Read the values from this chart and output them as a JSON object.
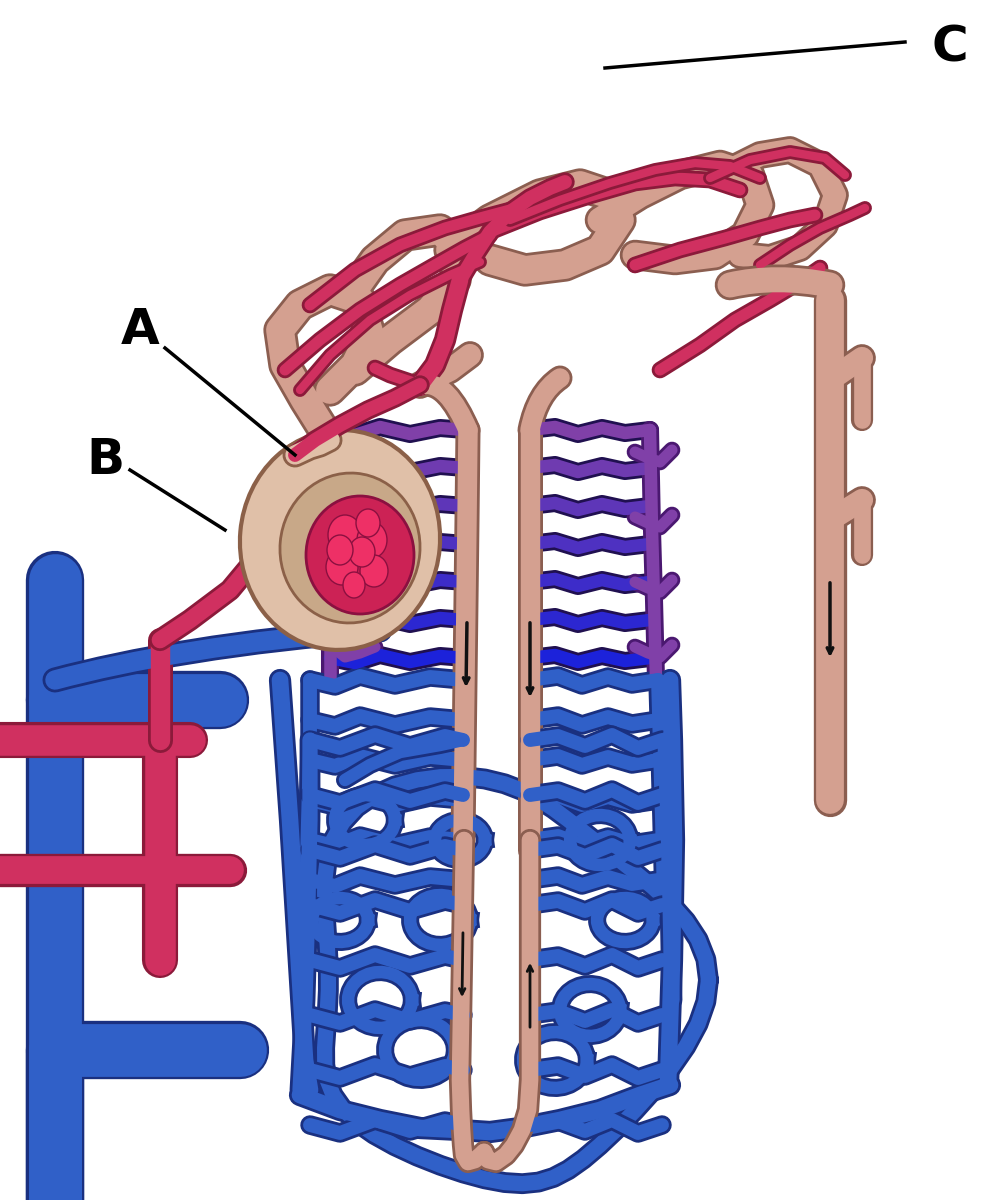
{
  "background_color": "#ffffff",
  "label_A": "A",
  "label_B": "B",
  "label_C": "C",
  "pink_tubule": "#D4A090",
  "pink_outline": "#8B5E50",
  "red_vessel": "#D03060",
  "red_outline": "#8B1A3A",
  "blue_vessel": "#3060C8",
  "blue_outline": "#1A3080",
  "purple_vessel": "#8040A8",
  "purple_outline": "#4A1870",
  "bowman_fill": "#E0C0A8",
  "glom_fill": "#CC2255",
  "label_fontsize": 36,
  "lw_large_vessel": 28,
  "lw_medium_vessel": 18,
  "lw_small_vessel": 12,
  "lw_tubule": 16,
  "lw_capillary": 9
}
